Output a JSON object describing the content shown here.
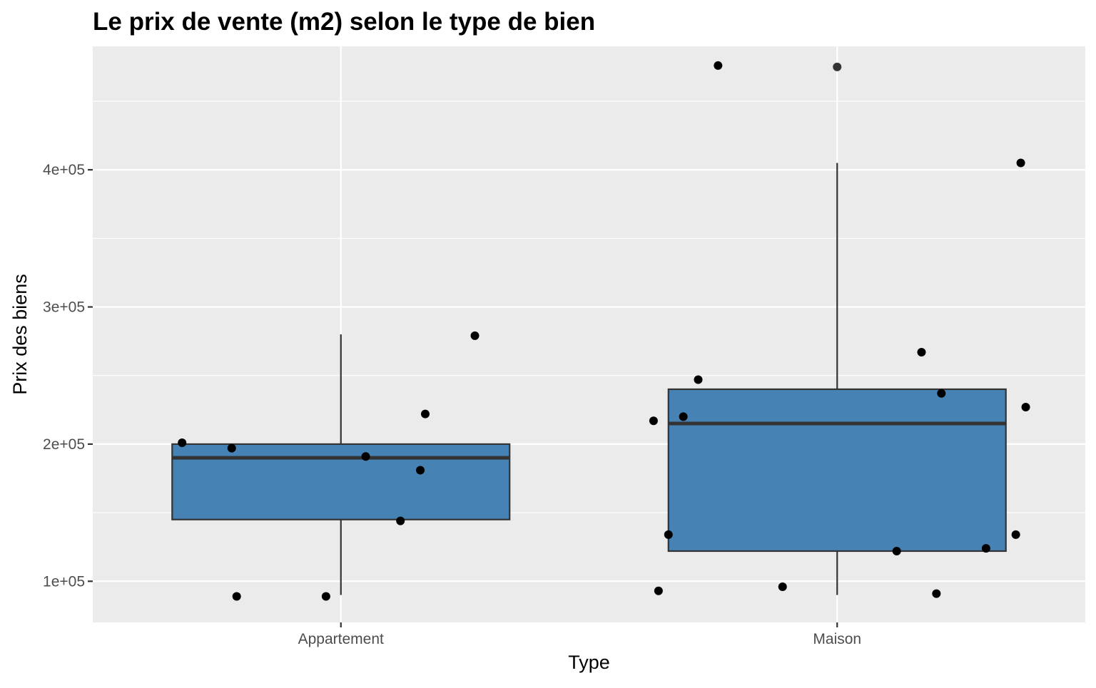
{
  "chart_data": {
    "type": "box",
    "title": "Le prix de vente (m2) selon le type de bien",
    "xlabel": "Type",
    "ylabel": "Prix des biens",
    "ylim": [
      70000,
      490000
    ],
    "yticks": [
      100000,
      200000,
      300000,
      400000
    ],
    "ytick_labels": [
      "1e+05",
      "2e+05",
      "3e+05",
      "4e+05"
    ],
    "grid": true,
    "categories": [
      "Appartement",
      "Maison"
    ],
    "boxes": [
      {
        "category": "Appartement",
        "whisker_low": 90000,
        "q1": 145000,
        "median": 190000,
        "q3": 200000,
        "whisker_high": 280000
      },
      {
        "category": "Maison",
        "whisker_low": 90000,
        "q1": 122000,
        "median": 215000,
        "q3": 240000,
        "whisker_high": 405000,
        "outliers": [
          475000
        ]
      }
    ],
    "points": [
      {
        "category": "Appartement",
        "jitter": -0.32,
        "y": 201000
      },
      {
        "category": "Appartement",
        "jitter": -0.22,
        "y": 197000
      },
      {
        "category": "Appartement",
        "jitter": -0.21,
        "y": 89000
      },
      {
        "category": "Appartement",
        "jitter": -0.03,
        "y": 89000
      },
      {
        "category": "Appartement",
        "jitter": 0.05,
        "y": 191000
      },
      {
        "category": "Appartement",
        "jitter": 0.12,
        "y": 144000
      },
      {
        "category": "Appartement",
        "jitter": 0.16,
        "y": 181000
      },
      {
        "category": "Appartement",
        "jitter": 0.17,
        "y": 222000
      },
      {
        "category": "Appartement",
        "jitter": 0.27,
        "y": 279000
      },
      {
        "category": "Maison",
        "jitter": -0.37,
        "y": 217000
      },
      {
        "category": "Maison",
        "jitter": -0.36,
        "y": 93000
      },
      {
        "category": "Maison",
        "jitter": -0.34,
        "y": 134000
      },
      {
        "category": "Maison",
        "jitter": -0.31,
        "y": 220000
      },
      {
        "category": "Maison",
        "jitter": -0.28,
        "y": 247000
      },
      {
        "category": "Maison",
        "jitter": -0.24,
        "y": 476000
      },
      {
        "category": "Maison",
        "jitter": -0.11,
        "y": 96000
      },
      {
        "category": "Maison",
        "jitter": 0.12,
        "y": 122000
      },
      {
        "category": "Maison",
        "jitter": 0.17,
        "y": 267000
      },
      {
        "category": "Maison",
        "jitter": 0.2,
        "y": 91000
      },
      {
        "category": "Maison",
        "jitter": 0.21,
        "y": 237000
      },
      {
        "category": "Maison",
        "jitter": 0.3,
        "y": 124000
      },
      {
        "category": "Maison",
        "jitter": 0.36,
        "y": 134000
      },
      {
        "category": "Maison",
        "jitter": 0.37,
        "y": 405000
      },
      {
        "category": "Maison",
        "jitter": 0.38,
        "y": 227000
      }
    ],
    "colors": {
      "panel": "#ebebeb",
      "grid": "#ffffff",
      "box_fill": "#4682b4",
      "box_stroke": "#333333",
      "point": "#000000",
      "outlier": "#333333",
      "tick": "#333333"
    }
  }
}
